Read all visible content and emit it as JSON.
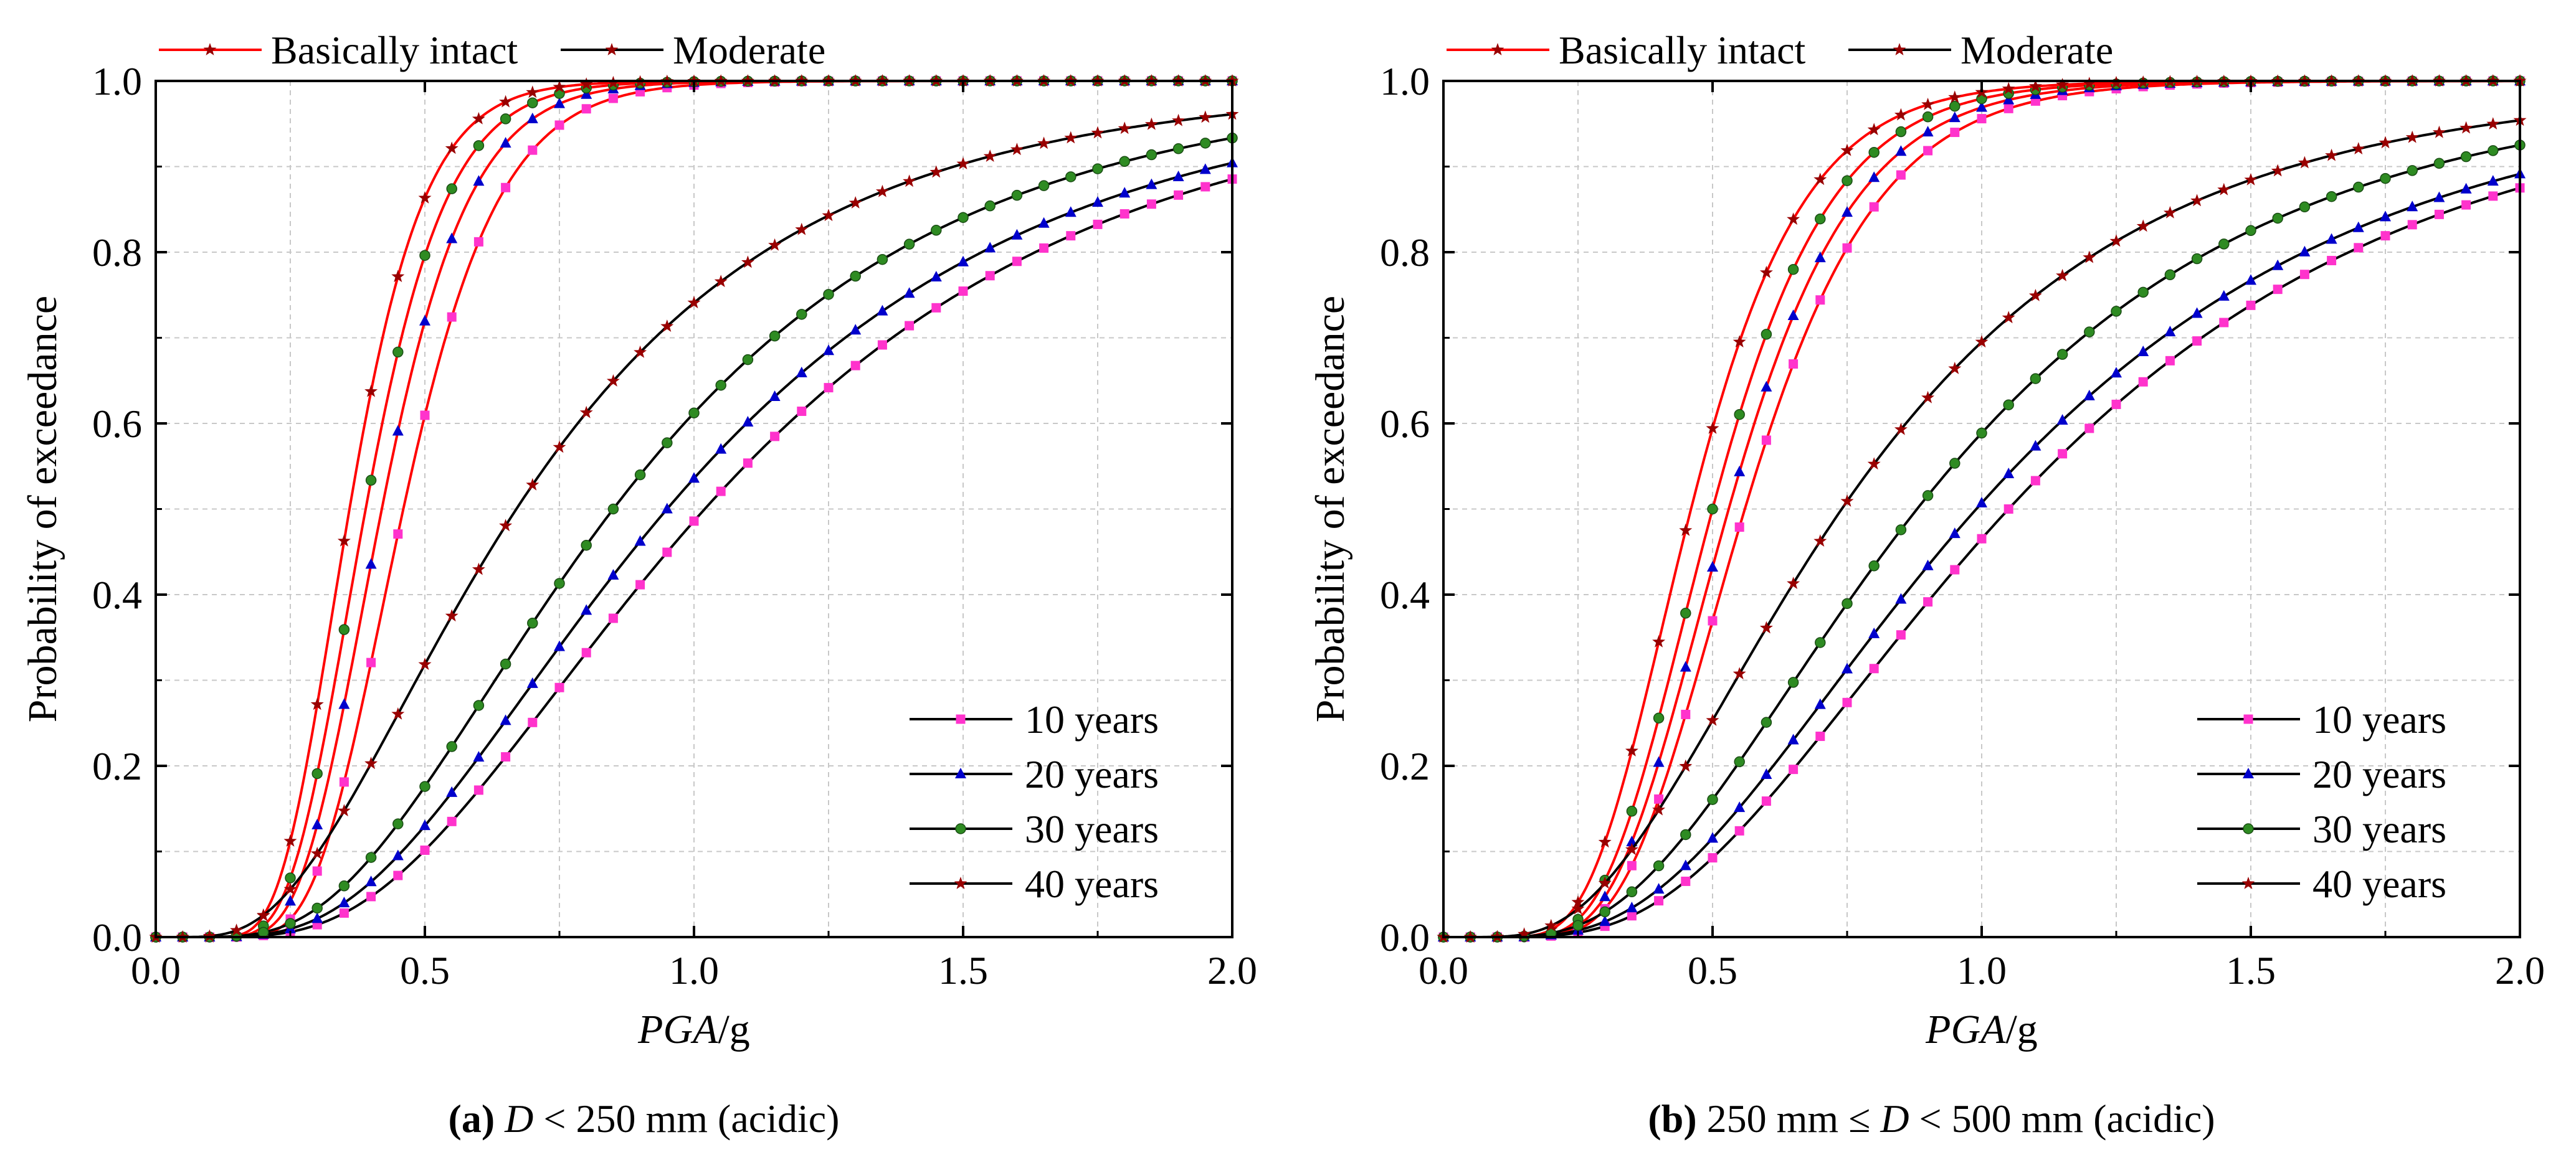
{
  "chart_data": [
    {
      "type": "line",
      "panel_id": "a",
      "xlabel_italic": "PGA",
      "xlabel_rest": "/g",
      "ylabel": "Probability of exceedance",
      "xlim": [
        0,
        2.0
      ],
      "ylim": [
        0,
        1.0
      ],
      "xticks": [
        "0.0",
        "0.5",
        "1.0",
        "1.5",
        "2.0"
      ],
      "yticks": [
        "0.0",
        "0.2",
        "0.4",
        "0.6",
        "0.8",
        "1.0"
      ],
      "grid": true,
      "legend_states": [
        "Basically intact",
        "Moderate"
      ],
      "legend_states_placement": "top",
      "legend_years": [
        "10 years",
        "20 years",
        "30 years",
        "40 years"
      ],
      "legend_years_placement": "bottom-right",
      "caption": {
        "label": "(a)",
        "var": "D",
        "text": " < 250 mm (acidic)"
      },
      "series": [
        {
          "name": "10 years",
          "state": "Basically intact",
          "marker": "square",
          "median": 0.46,
          "beta": 0.3
        },
        {
          "name": "20 years",
          "state": "Basically intact",
          "marker": "triangle",
          "median": 0.42,
          "beta": 0.3
        },
        {
          "name": "30 years",
          "state": "Basically intact",
          "marker": "circle",
          "median": 0.39,
          "beta": 0.3
        },
        {
          "name": "40 years",
          "state": "Basically intact",
          "marker": "star",
          "median": 0.36,
          "beta": 0.3
        },
        {
          "name": "10 years",
          "state": "Moderate",
          "marker": "square",
          "median": 1.02,
          "beta": 0.56
        },
        {
          "name": "20 years",
          "state": "Moderate",
          "marker": "triangle",
          "median": 0.95,
          "beta": 0.57
        },
        {
          "name": "30 years",
          "state": "Moderate",
          "marker": "circle",
          "median": 0.85,
          "beta": 0.57
        },
        {
          "name": "40 years",
          "state": "Moderate",
          "marker": "star",
          "median": 0.67,
          "beta": 0.62
        }
      ]
    },
    {
      "type": "line",
      "panel_id": "b",
      "xlabel_italic": "PGA",
      "xlabel_rest": "/g",
      "ylabel": "Probability of exceedance",
      "xlim": [
        0,
        2.0
      ],
      "ylim": [
        0,
        1.0
      ],
      "xticks": [
        "0.0",
        "0.5",
        "1.0",
        "1.5",
        "2.0"
      ],
      "yticks": [
        "0.0",
        "0.2",
        "0.4",
        "0.6",
        "0.8",
        "1.0"
      ],
      "grid": true,
      "legend_states": [
        "Basically intact",
        "Moderate"
      ],
      "legend_states_placement": "top",
      "legend_years": [
        "10 years",
        "20 years",
        "30 years",
        "40 years"
      ],
      "legend_years_placement": "bottom-right",
      "caption": {
        "label": "(b)",
        "prefix": " 250 mm ≤ ",
        "var": "D",
        "text": " < 500 mm (acidic)"
      },
      "series": [
        {
          "name": "10 years",
          "state": "Basically intact",
          "marker": "square",
          "median": 0.56,
          "beta": 0.34
        },
        {
          "name": "20 years",
          "state": "Basically intact",
          "marker": "triangle",
          "median": 0.53,
          "beta": 0.34
        },
        {
          "name": "30 years",
          "state": "Basically intact",
          "marker": "circle",
          "median": 0.5,
          "beta": 0.34
        },
        {
          "name": "40 years",
          "state": "Basically intact",
          "marker": "star",
          "median": 0.46,
          "beta": 0.35
        },
        {
          "name": "10 years",
          "state": "Moderate",
          "marker": "square",
          "median": 1.05,
          "beta": 0.56
        },
        {
          "name": "20 years",
          "state": "Moderate",
          "marker": "triangle",
          "median": 0.99,
          "beta": 0.57
        },
        {
          "name": "30 years",
          "state": "Moderate",
          "marker": "circle",
          "median": 0.88,
          "beta": 0.57
        },
        {
          "name": "40 years",
          "state": "Moderate",
          "marker": "star",
          "median": 0.74,
          "beta": 0.59
        }
      ]
    }
  ],
  "colors": {
    "intact_line": "#ff0000",
    "moderate_line": "#000000",
    "square_marker": "#ff33cc",
    "triangle_marker": "#0000cc",
    "circle_marker": "#2e8b22",
    "star_marker": "#990000",
    "grid": "#c8c8c8"
  }
}
